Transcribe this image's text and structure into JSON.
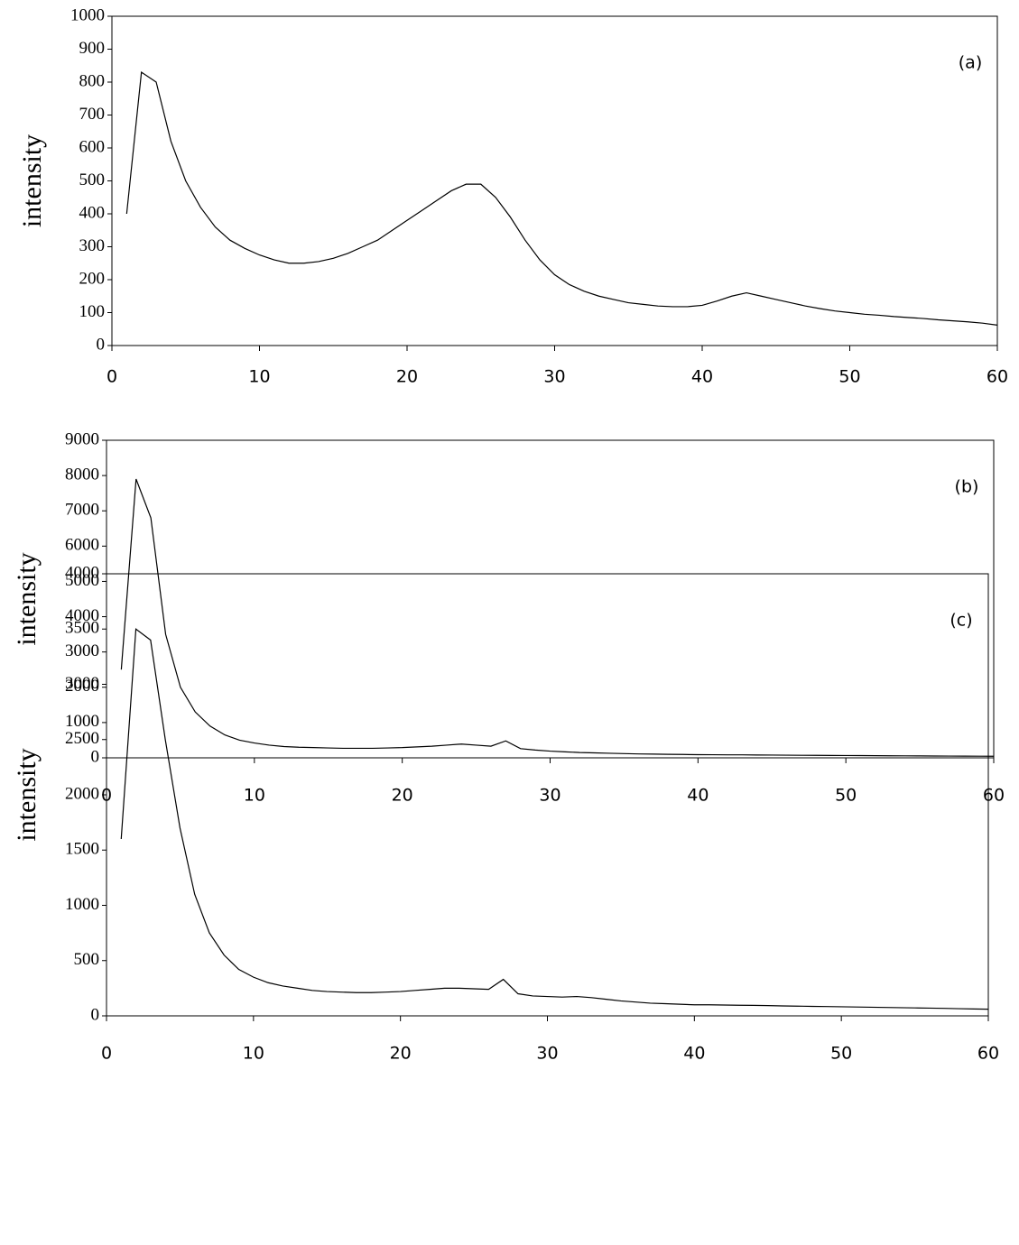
{
  "chart_data": [
    {
      "type": "line",
      "ylabel": "intensity",
      "annotation": "(a)",
      "x": [
        1,
        2,
        3,
        4,
        5,
        6,
        7,
        8,
        9,
        10,
        11,
        12,
        13,
        14,
        15,
        16,
        17,
        18,
        19,
        20,
        21,
        22,
        23,
        24,
        25,
        26,
        27,
        28,
        29,
        30,
        31,
        32,
        33,
        34,
        35,
        36,
        37,
        38,
        39,
        40,
        41,
        42,
        43,
        44,
        45,
        46,
        47,
        48,
        49,
        50,
        51,
        52,
        53,
        54,
        55,
        56,
        57,
        58,
        59,
        60
      ],
      "series": [
        {
          "color": "#000000",
          "values": [
            400,
            830,
            800,
            620,
            500,
            420,
            360,
            320,
            295,
            275,
            260,
            250,
            250,
            255,
            265,
            280,
            300,
            320,
            350,
            380,
            410,
            440,
            470,
            490,
            490,
            450,
            390,
            320,
            260,
            215,
            185,
            165,
            150,
            140,
            130,
            125,
            120,
            118,
            118,
            122,
            135,
            150,
            160,
            150,
            140,
            130,
            120,
            112,
            105,
            100,
            95,
            92,
            88,
            85,
            82,
            78,
            75,
            72,
            68,
            62
          ]
        }
      ],
      "xlim": [
        0,
        60
      ],
      "xticks": [
        0,
        10,
        20,
        30,
        40,
        50,
        60
      ],
      "ylim": [
        0,
        1000
      ],
      "yticks": [
        0,
        100,
        200,
        300,
        400,
        500,
        600,
        700,
        800,
        900,
        1000
      ]
    },
    {
      "type": "line",
      "ylabel": "intensity",
      "annotation": "(b)",
      "x": [
        1,
        2,
        3,
        4,
        5,
        6,
        7,
        8,
        9,
        10,
        11,
        12,
        13,
        14,
        15,
        16,
        17,
        18,
        19,
        20,
        21,
        22,
        23,
        24,
        25,
        26,
        27,
        28,
        29,
        30,
        31,
        32,
        33,
        34,
        35,
        36,
        37,
        38,
        39,
        40,
        41,
        42,
        43,
        44,
        45,
        46,
        47,
        48,
        49,
        50,
        51,
        52,
        53,
        54,
        55,
        56,
        57,
        58,
        59,
        60
      ],
      "series": [
        {
          "color": "#000000",
          "values": [
            2500,
            7900,
            6800,
            3500,
            2000,
            1300,
            900,
            650,
            500,
            420,
            360,
            320,
            300,
            290,
            280,
            270,
            270,
            270,
            280,
            290,
            310,
            330,
            360,
            390,
            360,
            330,
            480,
            260,
            220,
            190,
            170,
            150,
            140,
            130,
            120,
            110,
            105,
            100,
            95,
            90,
            88,
            85,
            85,
            80,
            78,
            75,
            72,
            70,
            68,
            65,
            63,
            60,
            58,
            56,
            54,
            52,
            50,
            48,
            46,
            45
          ]
        }
      ],
      "xlim": [
        0,
        60
      ],
      "xticks": [
        0,
        10,
        20,
        30,
        40,
        50,
        60
      ],
      "ylim": [
        0,
        9000
      ],
      "yticks": [
        0,
        1000,
        2000,
        3000,
        4000,
        5000,
        6000,
        7000,
        8000,
        9000
      ]
    },
    {
      "type": "line",
      "ylabel": "intensity",
      "annotation": "(c)",
      "x": [
        1,
        2,
        3,
        4,
        5,
        6,
        7,
        8,
        9,
        10,
        11,
        12,
        13,
        14,
        15,
        16,
        17,
        18,
        19,
        20,
        21,
        22,
        23,
        24,
        25,
        26,
        27,
        28,
        29,
        30,
        31,
        32,
        33,
        34,
        35,
        36,
        37,
        38,
        39,
        40,
        41,
        42,
        43,
        44,
        45,
        46,
        47,
        48,
        49,
        50,
        51,
        52,
        53,
        54,
        55,
        56,
        57,
        58,
        59,
        60
      ],
      "series": [
        {
          "color": "#000000",
          "values": [
            1600,
            3500,
            3400,
            2500,
            1700,
            1100,
            750,
            550,
            420,
            350,
            300,
            270,
            250,
            230,
            220,
            215,
            210,
            210,
            215,
            220,
            230,
            240,
            250,
            250,
            245,
            240,
            330,
            200,
            180,
            175,
            170,
            175,
            165,
            150,
            135,
            125,
            115,
            110,
            105,
            100,
            100,
            98,
            96,
            95,
            93,
            90,
            88,
            86,
            84,
            82,
            80,
            78,
            76,
            74,
            72,
            70,
            68,
            65,
            62,
            60
          ]
        }
      ],
      "xlim": [
        0,
        60
      ],
      "xticks": [
        0,
        10,
        20,
        30,
        40,
        50,
        60
      ],
      "ylim": [
        0,
        4000
      ],
      "yticks": [
        0,
        500,
        1000,
        1500,
        2000,
        2500,
        3000,
        3500,
        4000
      ]
    }
  ]
}
